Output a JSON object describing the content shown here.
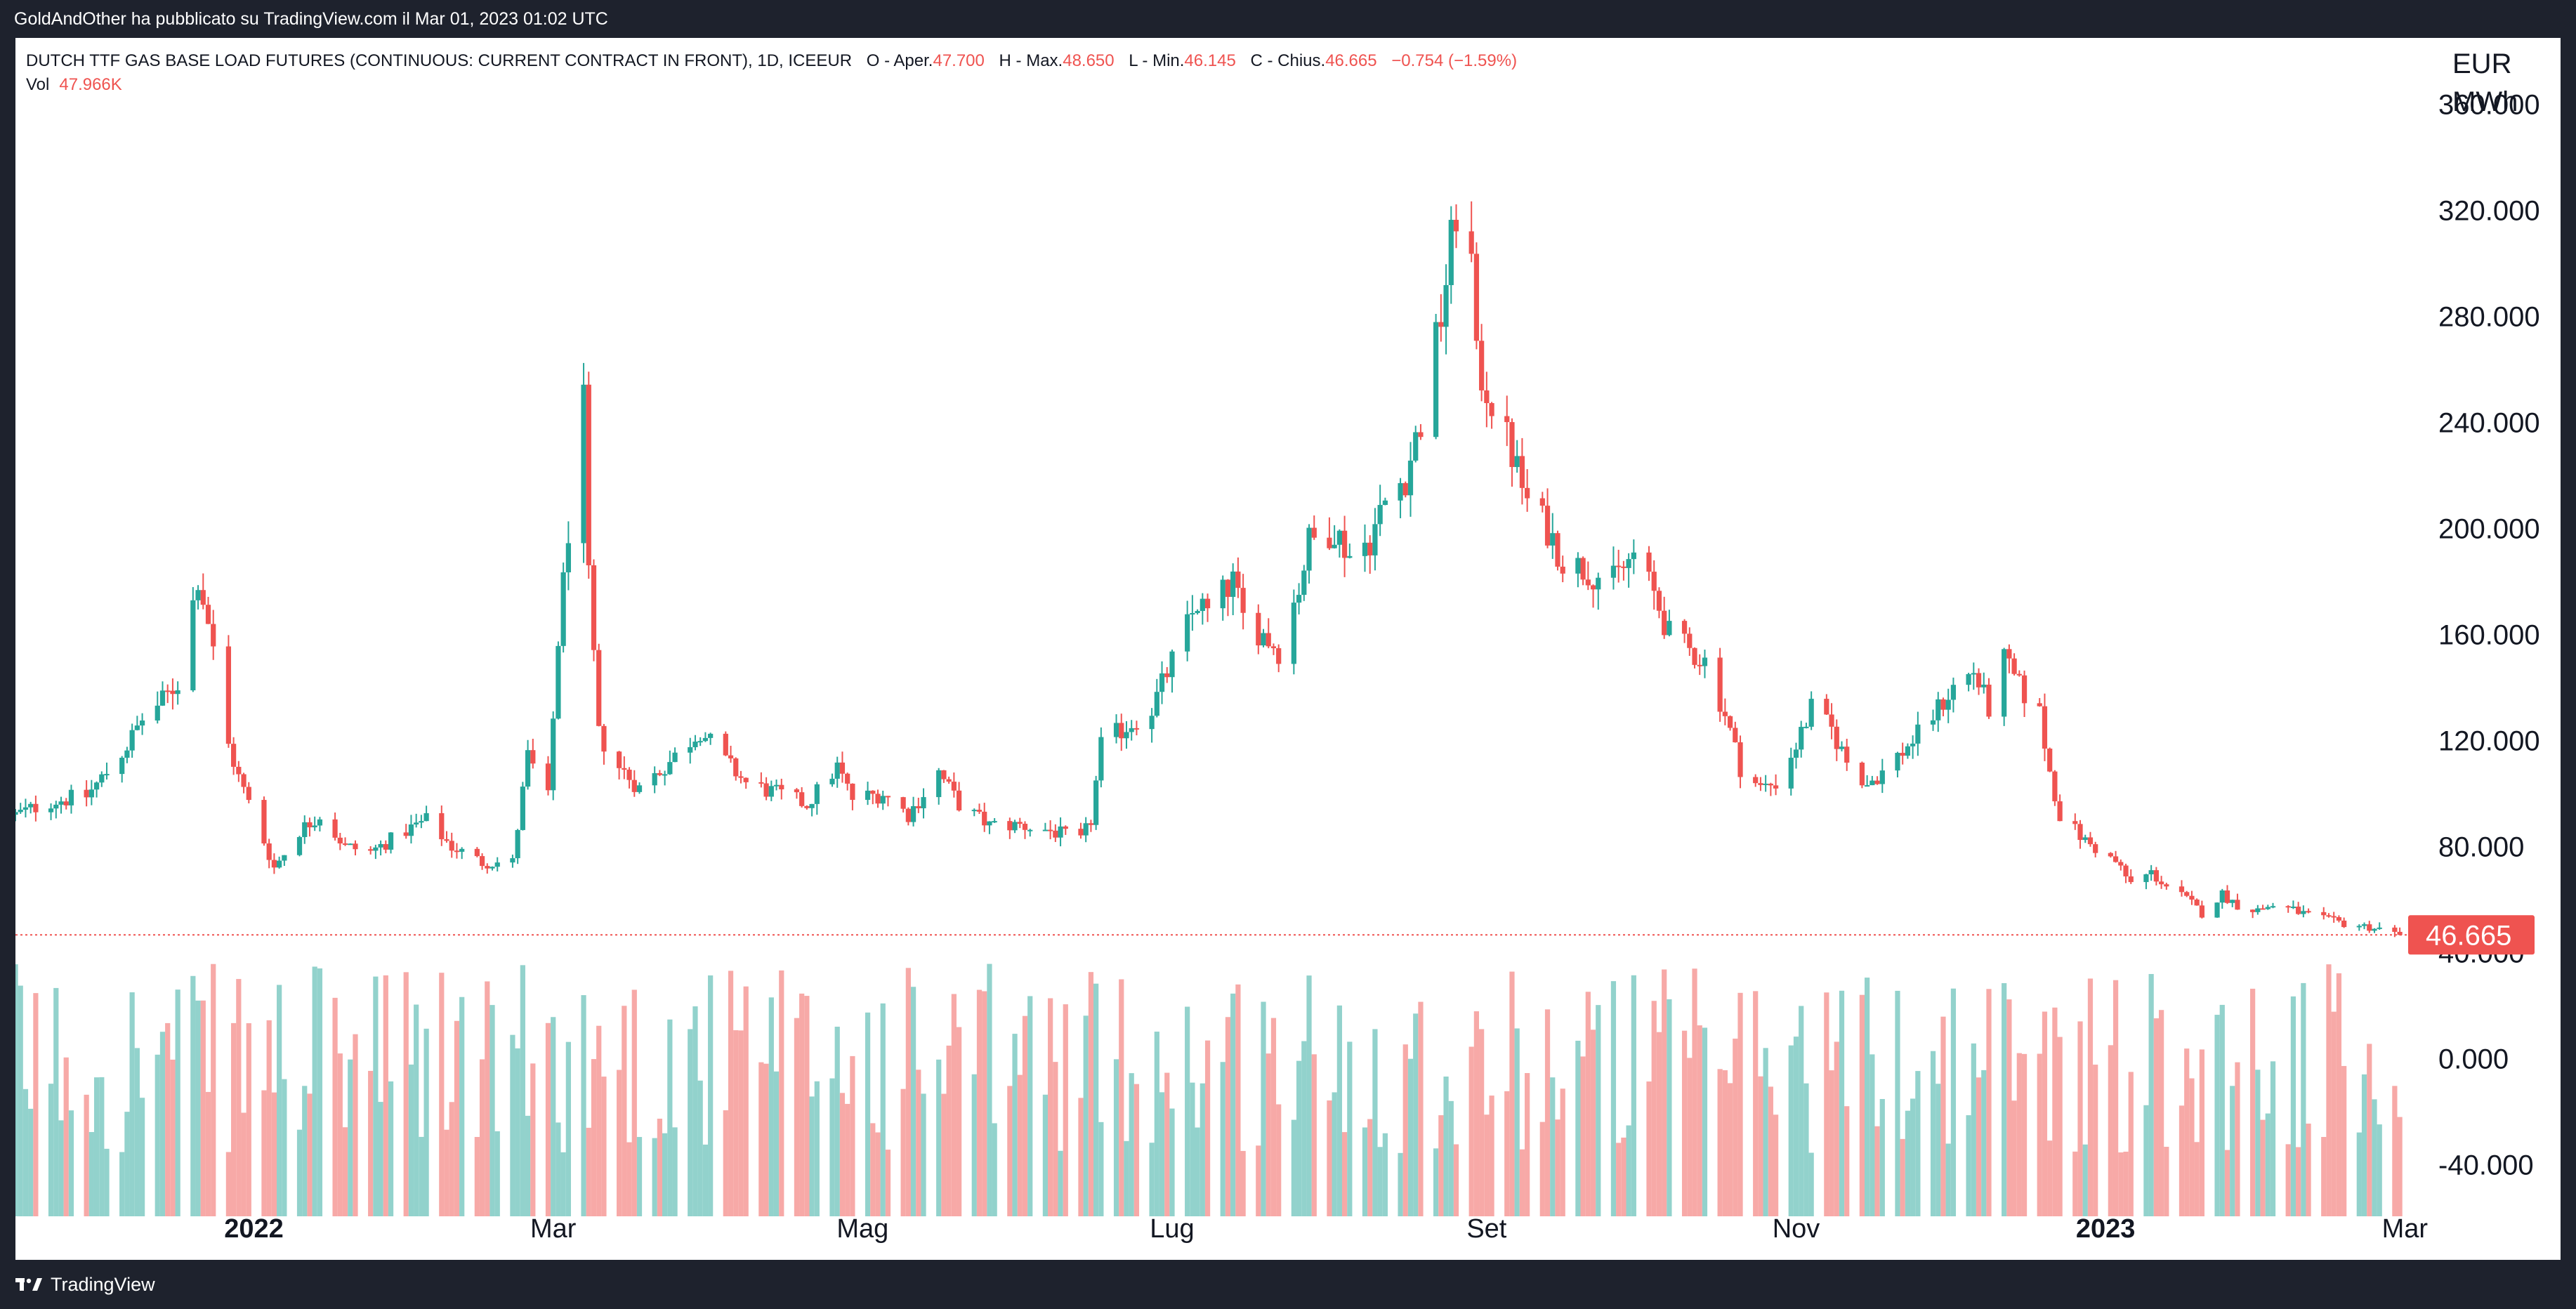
{
  "attribution": "GoldAndOther ha pubblicato su TradingView.com il Mar 01, 2023 01:02 UTC",
  "legend": {
    "symbol": "DUTCH TTF GAS BASE LOAD FUTURES (CONTINUOUS: CURRENT CONTRACT IN FRONT), 1D, ICEEUR",
    "open_label": "O - Aper.",
    "open": "47.700",
    "high_label": "H - Max.",
    "high": "48.650",
    "low_label": "L - Min.",
    "low": "46.145",
    "close_label": "C - Chius.",
    "close": "46.665",
    "change": "−0.754 (−1.59%)",
    "vol_label": "Vol",
    "vol": "47.966K"
  },
  "unit": {
    "line1": "EUR",
    "line2": "MWh"
  },
  "price_tag": "46.665",
  "footer": {
    "brand": "TradingView",
    "logo_icon": "tradingview-logo-icon"
  },
  "colors": {
    "up": "#26a69a",
    "down": "#ef5350",
    "vol_up": "#92d2cc",
    "vol_down": "#f7a9a7"
  },
  "chart_data": {
    "type": "candlestick",
    "y_ticks": [
      "360.000",
      "320.000",
      "280.000",
      "240.000",
      "200.000",
      "160.000",
      "120.000",
      "80.000",
      "40.000",
      "0.000",
      "-40.000"
    ],
    "y_tick_values": [
      360,
      320,
      280,
      240,
      200,
      160,
      120,
      80,
      40,
      0,
      -40
    ],
    "ylim": [
      -60,
      385
    ],
    "x_labels": [
      {
        "text": "2022",
        "date": "2022-01-01",
        "bold": true
      },
      {
        "text": "Mar",
        "date": "2022-03-01",
        "bold": false
      },
      {
        "text": "Mag",
        "date": "2022-05-01",
        "bold": false
      },
      {
        "text": "Lug",
        "date": "2022-07-01",
        "bold": false
      },
      {
        "text": "Set",
        "date": "2022-09-01",
        "bold": false
      },
      {
        "text": "Nov",
        "date": "2022-11-01",
        "bold": false
      },
      {
        "text": "2023",
        "date": "2023-01-01",
        "bold": true
      },
      {
        "text": "Mar",
        "date": "2023-03-01",
        "bold": false
      }
    ],
    "last_price": 46.665,
    "price_anchors": [
      [
        "2021-11-15",
        92
      ],
      [
        "2021-11-22",
        97
      ],
      [
        "2021-11-29",
        99
      ],
      [
        "2021-12-03",
        108
      ],
      [
        "2021-12-07",
        118
      ],
      [
        "2021-12-10",
        128
      ],
      [
        "2021-12-14",
        135
      ],
      [
        "2021-12-17",
        142
      ],
      [
        "2021-12-21",
        182
      ],
      [
        "2021-12-23",
        165
      ],
      [
        "2021-12-27",
        118
      ],
      [
        "2021-12-29",
        106
      ],
      [
        "2022-01-03",
        82
      ],
      [
        "2022-01-05",
        72
      ],
      [
        "2022-01-10",
        86
      ],
      [
        "2022-01-14",
        92
      ],
      [
        "2022-01-19",
        80
      ],
      [
        "2022-01-24",
        78
      ],
      [
        "2022-01-31",
        86
      ],
      [
        "2022-02-04",
        90
      ],
      [
        "2022-02-09",
        80
      ],
      [
        "2022-02-15",
        74
      ],
      [
        "2022-02-21",
        74
      ],
      [
        "2022-02-24",
        114
      ],
      [
        "2022-02-28",
        98
      ],
      [
        "2022-03-02",
        158
      ],
      [
        "2022-03-04",
        200
      ],
      [
        "2022-03-07",
        246
      ],
      [
        "2022-03-08",
        180
      ],
      [
        "2022-03-10",
        122
      ],
      [
        "2022-03-14",
        110
      ],
      [
        "2022-03-18",
        102
      ],
      [
        "2022-03-24",
        112
      ],
      [
        "2022-03-30",
        124
      ],
      [
        "2022-04-04",
        112
      ],
      [
        "2022-04-08",
        104
      ],
      [
        "2022-04-14",
        100
      ],
      [
        "2022-04-20",
        96
      ],
      [
        "2022-04-26",
        110
      ],
      [
        "2022-04-29",
        98
      ],
      [
        "2022-05-05",
        100
      ],
      [
        "2022-05-10",
        92
      ],
      [
        "2022-05-16",
        108
      ],
      [
        "2022-05-20",
        96
      ],
      [
        "2022-05-26",
        88
      ],
      [
        "2022-06-01",
        88
      ],
      [
        "2022-06-07",
        86
      ],
      [
        "2022-06-13",
        82
      ],
      [
        "2022-06-15",
        90
      ],
      [
        "2022-06-17",
        118
      ],
      [
        "2022-06-21",
        124
      ],
      [
        "2022-06-27",
        132
      ],
      [
        "2022-07-01",
        150
      ],
      [
        "2022-07-06",
        172
      ],
      [
        "2022-07-08",
        168
      ],
      [
        "2022-07-13",
        180
      ],
      [
        "2022-07-15",
        166
      ],
      [
        "2022-07-19",
        160
      ],
      [
        "2022-07-22",
        154
      ],
      [
        "2022-07-26",
        178
      ],
      [
        "2022-07-28",
        195
      ],
      [
        "2022-08-02",
        200
      ],
      [
        "2022-08-05",
        190
      ],
      [
        "2022-08-09",
        196
      ],
      [
        "2022-08-12",
        210
      ],
      [
        "2022-08-16",
        220
      ],
      [
        "2022-08-19",
        240
      ],
      [
        "2022-08-23",
        280
      ],
      [
        "2022-08-26",
        320
      ],
      [
        "2022-08-29",
        300
      ],
      [
        "2022-08-30",
        262
      ],
      [
        "2022-09-02",
        248
      ],
      [
        "2022-09-06",
        228
      ],
      [
        "2022-09-09",
        210
      ],
      [
        "2022-09-13",
        200
      ],
      [
        "2022-09-16",
        188
      ],
      [
        "2022-09-21",
        184
      ],
      [
        "2022-09-26",
        180
      ],
      [
        "2022-09-30",
        190
      ],
      [
        "2022-10-04",
        175
      ],
      [
        "2022-10-07",
        160
      ],
      [
        "2022-10-11",
        154
      ],
      [
        "2022-10-14",
        150
      ],
      [
        "2022-10-18",
        130
      ],
      [
        "2022-10-21",
        110
      ],
      [
        "2022-10-25",
        102
      ],
      [
        "2022-10-28",
        104
      ],
      [
        "2022-11-01",
        118
      ],
      [
        "2022-11-04",
        132
      ],
      [
        "2022-11-08",
        124
      ],
      [
        "2022-11-11",
        112
      ],
      [
        "2022-11-15",
        104
      ],
      [
        "2022-11-18",
        108
      ],
      [
        "2022-11-22",
        116
      ],
      [
        "2022-11-25",
        122
      ],
      [
        "2022-11-29",
        132
      ],
      [
        "2022-12-02",
        140
      ],
      [
        "2022-12-06",
        146
      ],
      [
        "2022-12-09",
        132
      ],
      [
        "2022-12-12",
        150
      ],
      [
        "2022-12-15",
        140
      ],
      [
        "2022-12-19",
        130
      ],
      [
        "2022-12-21",
        108
      ],
      [
        "2022-12-23",
        92
      ],
      [
        "2022-12-28",
        82
      ],
      [
        "2023-01-03",
        74
      ],
      [
        "2023-01-06",
        66
      ],
      [
        "2023-01-10",
        70
      ],
      [
        "2023-01-13",
        65
      ],
      [
        "2023-01-17",
        60
      ],
      [
        "2023-01-20",
        55
      ],
      [
        "2023-01-24",
        62
      ],
      [
        "2023-01-27",
        58
      ],
      [
        "2023-01-31",
        56
      ],
      [
        "2023-02-03",
        58
      ],
      [
        "2023-02-07",
        56
      ],
      [
        "2023-02-10",
        54
      ],
      [
        "2023-02-14",
        52
      ],
      [
        "2023-02-17",
        51
      ],
      [
        "2023-02-21",
        50
      ],
      [
        "2023-02-24",
        49
      ],
      [
        "2023-02-28",
        46.665
      ]
    ]
  }
}
